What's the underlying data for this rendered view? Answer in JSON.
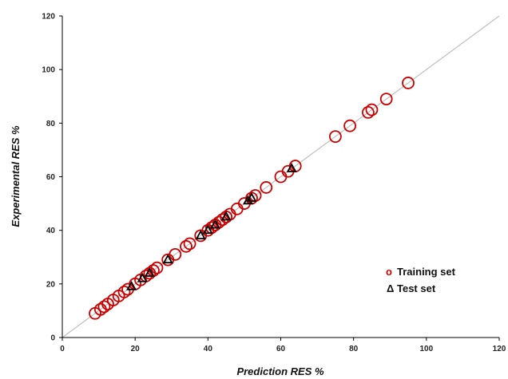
{
  "chart_data": {
    "type": "scatter",
    "title": "",
    "xlabel": "Prediction RES %",
    "ylabel": "Experimental RES %",
    "xlim": [
      0,
      120
    ],
    "ylim": [
      0,
      120
    ],
    "xticks": [
      0,
      20,
      40,
      60,
      80,
      100,
      120
    ],
    "yticks": [
      0,
      20,
      40,
      60,
      80,
      100,
      120
    ],
    "grid": false,
    "legend_position": "bottom-right",
    "reference_line": {
      "type": "y=x",
      "color": "#c0c0c0"
    },
    "series": [
      {
        "name": "Training set",
        "marker": "open-circle",
        "legend_symbol": "o",
        "color": "#cc0000",
        "points": [
          [
            9,
            9
          ],
          [
            10.5,
            10.5
          ],
          [
            11.5,
            11.5
          ],
          [
            12.5,
            12.5
          ],
          [
            14,
            14
          ],
          [
            15.5,
            15.5
          ],
          [
            17,
            17
          ],
          [
            18,
            18
          ],
          [
            20,
            20
          ],
          [
            21.5,
            21.5
          ],
          [
            23,
            23
          ],
          [
            24,
            24
          ],
          [
            25,
            25
          ],
          [
            26,
            26
          ],
          [
            29,
            29
          ],
          [
            31,
            31
          ],
          [
            34,
            34
          ],
          [
            35,
            35
          ],
          [
            38,
            38
          ],
          [
            40,
            40
          ],
          [
            41,
            41
          ],
          [
            42,
            42
          ],
          [
            43,
            43
          ],
          [
            44,
            44
          ],
          [
            45,
            45
          ],
          [
            46,
            46
          ],
          [
            48,
            48
          ],
          [
            50,
            50
          ],
          [
            52,
            52
          ],
          [
            53,
            53
          ],
          [
            56,
            56
          ],
          [
            60,
            60
          ],
          [
            62,
            62
          ],
          [
            64,
            64
          ],
          [
            75,
            75
          ],
          [
            79,
            79
          ],
          [
            84,
            84
          ],
          [
            85,
            85
          ],
          [
            89,
            89
          ],
          [
            95,
            95
          ]
        ]
      },
      {
        "name": "Test set",
        "marker": "open-triangle",
        "legend_symbol": "Δ",
        "color": "#000000",
        "points": [
          [
            19,
            19
          ],
          [
            22,
            22
          ],
          [
            24,
            24
          ],
          [
            29,
            29
          ],
          [
            38,
            38
          ],
          [
            40,
            40
          ],
          [
            42,
            42
          ],
          [
            45,
            45
          ],
          [
            51,
            51
          ],
          [
            52,
            52
          ],
          [
            63,
            63
          ]
        ]
      }
    ]
  }
}
